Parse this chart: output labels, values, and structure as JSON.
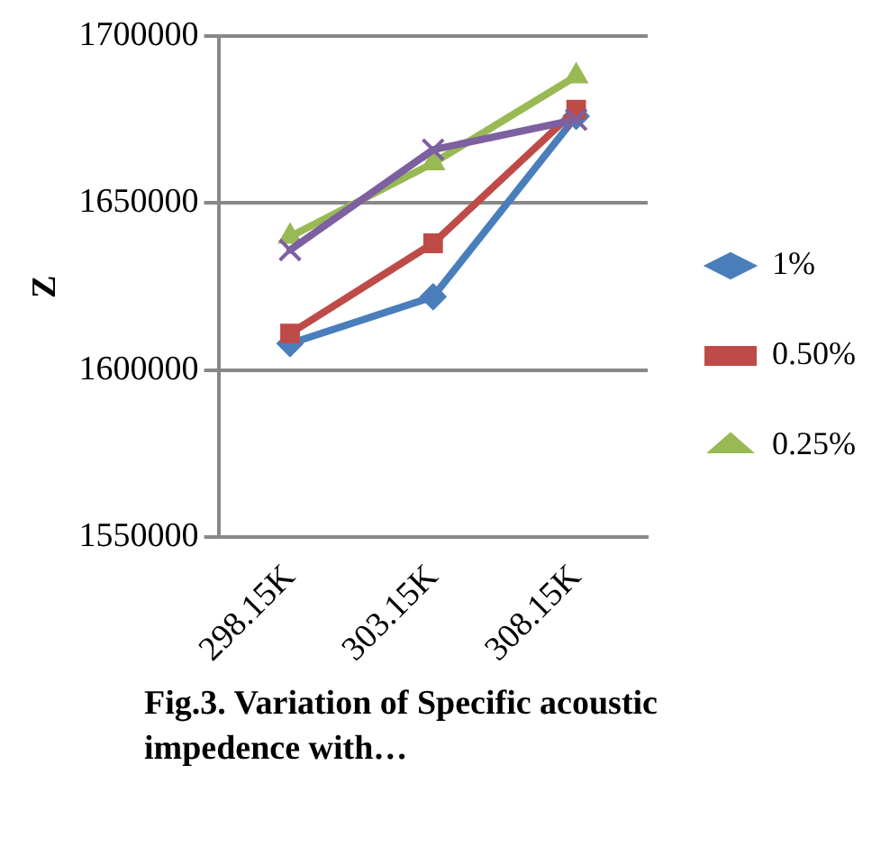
{
  "chart_data": {
    "type": "line",
    "ylabel": "Z",
    "categories": [
      "298.15K",
      "303.15K",
      "308.15K"
    ],
    "series": [
      {
        "name": "1%",
        "color": "#4a7ebb",
        "marker": "diamond",
        "values": [
          1608000,
          1622000,
          1676000
        ]
      },
      {
        "name": "0.50%",
        "color": "#be4b48",
        "marker": "square",
        "values": [
          1611000,
          1638000,
          1678000
        ]
      },
      {
        "name": "0.25%",
        "color": "#98b954",
        "marker": "triangle",
        "values": [
          1640000,
          1662000,
          1688000
        ]
      },
      {
        "color": "#7d60a0",
        "marker": "cross",
        "values": [
          1636000,
          1666000,
          1675000
        ]
      }
    ],
    "ylim": [
      1550000,
      1700000
    ],
    "yticks": [
      1550000,
      1600000,
      1650000,
      1700000
    ],
    "grid": "y",
    "legend": "right",
    "annotations": [
      "Fig.3. Variation of Specific acoustic impedence   with…"
    ]
  }
}
